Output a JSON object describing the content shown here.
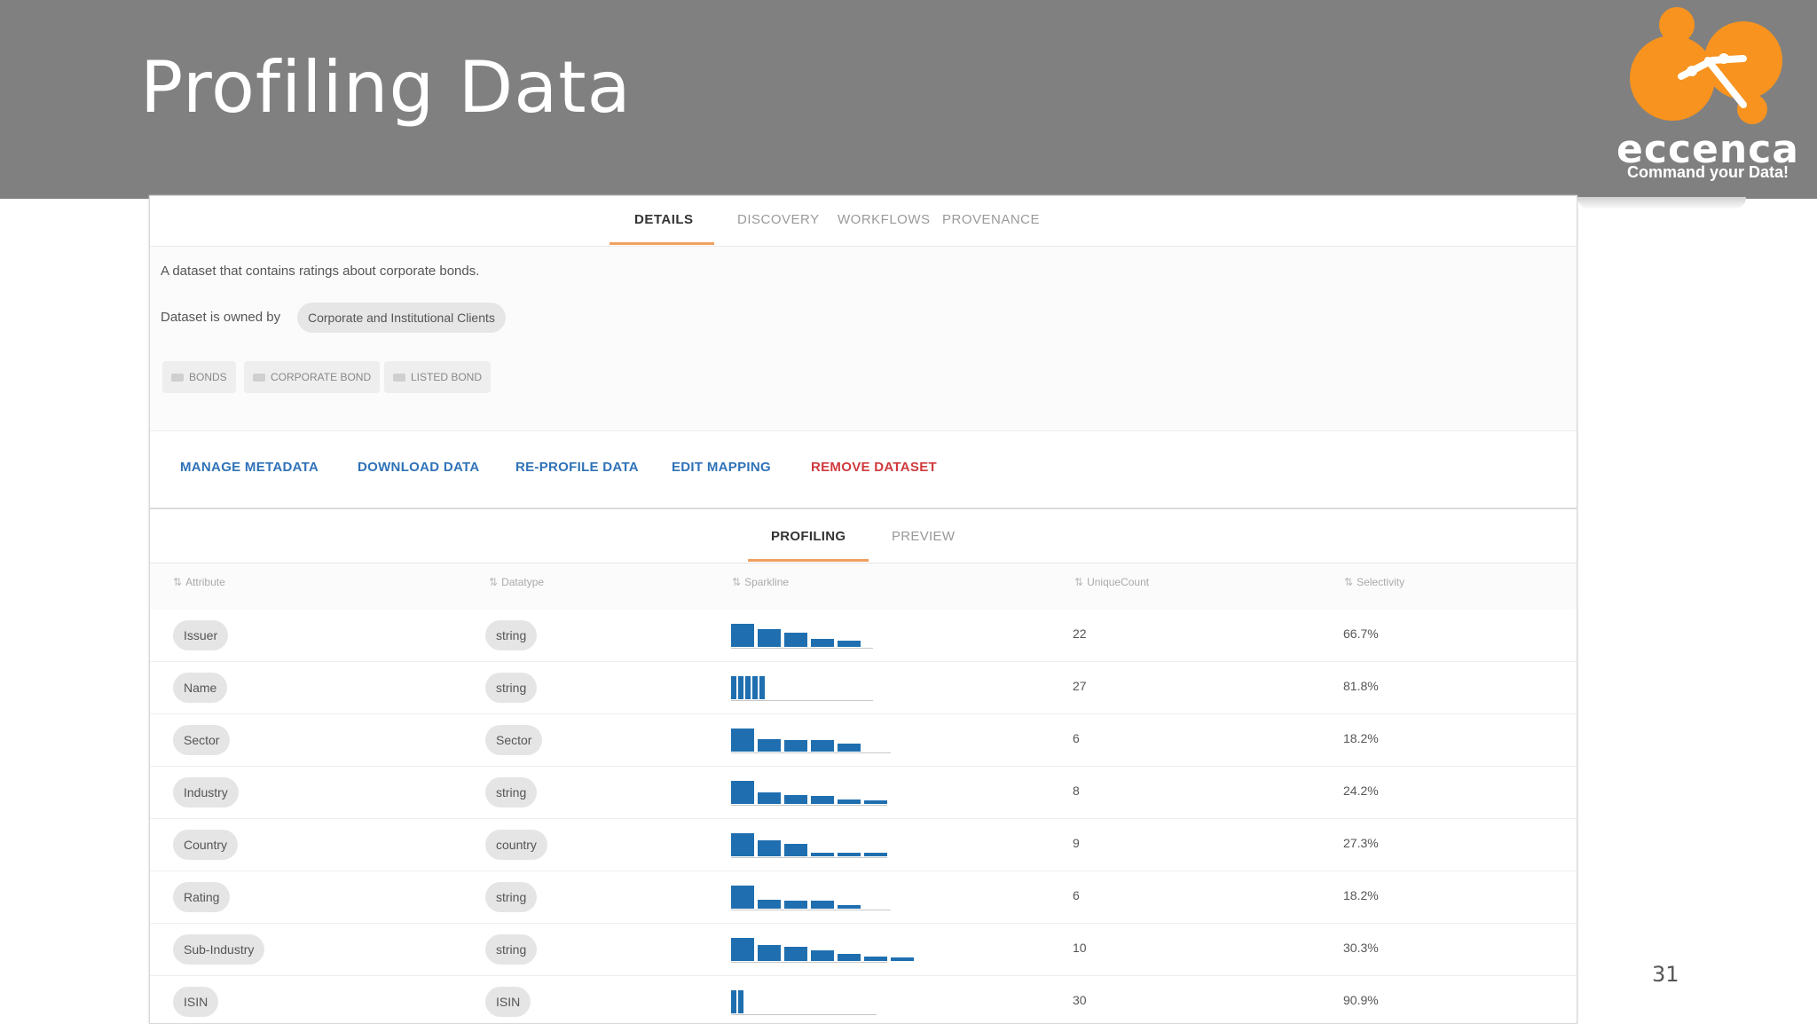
{
  "slide": {
    "title": "Profiling Data",
    "page_number": "31",
    "logo": {
      "word": "eccenca",
      "tagline": "Command your Data!"
    }
  },
  "tabs": [
    "DETAILS",
    "DISCOVERY",
    "WORKFLOWS",
    "PROVENANCE"
  ],
  "dataset": {
    "description": "A dataset that contains ratings about corporate bonds.",
    "owner_label": "Dataset is owned by",
    "owner": "Corporate and Institutional Clients",
    "tags": [
      "BONDS",
      "CORPORATE BOND",
      "LISTED BOND"
    ]
  },
  "actions": {
    "manage": "MANAGE METADATA",
    "download": "DOWNLOAD DATA",
    "reprofile": "RE-PROFILE DATA",
    "edit_mapping": "EDIT MAPPING",
    "remove": "REMOVE DATASET"
  },
  "subtabs": [
    "PROFILING",
    "PREVIEW"
  ],
  "table": {
    "headers": [
      "Attribute",
      "Datatype",
      "Sparkline",
      "UniqueCount",
      "Selectivity"
    ],
    "rows": [
      {
        "attribute": "Issuer",
        "datatype": "string",
        "unique": "22",
        "selectivity": "66.7%",
        "spark": [
          1.0,
          0.75,
          0.6,
          0.35,
          0.25
        ],
        "spark_width": 160
      },
      {
        "attribute": "Name",
        "datatype": "string",
        "unique": "27",
        "selectivity": "81.8%",
        "spark": [
          1.0,
          1.0,
          1.0,
          1.0,
          1.0
        ],
        "spark_width": 160
      },
      {
        "attribute": "Sector",
        "datatype": "Sector",
        "unique": "6",
        "selectivity": "18.2%",
        "spark": [
          1.0,
          0.55,
          0.5,
          0.5,
          0.35
        ],
        "spark_width": 180
      },
      {
        "attribute": "Industry",
        "datatype": "string",
        "unique": "8",
        "selectivity": "24.2%",
        "spark": [
          1.0,
          0.5,
          0.4,
          0.35,
          0.2,
          0.15
        ],
        "spark_width": 176
      },
      {
        "attribute": "Country",
        "datatype": "country",
        "unique": "9",
        "selectivity": "27.3%",
        "spark": [
          1.0,
          0.7,
          0.55,
          0.15,
          0.15,
          0.15
        ],
        "spark_width": 176
      },
      {
        "attribute": "Rating",
        "datatype": "string",
        "unique": "6",
        "selectivity": "18.2%",
        "spark": [
          1.0,
          0.4,
          0.35,
          0.35,
          0.15
        ],
        "spark_width": 180
      },
      {
        "attribute": "Sub-Industry",
        "datatype": "string",
        "unique": "10",
        "selectivity": "30.3%",
        "spark": [
          1.0,
          0.7,
          0.6,
          0.45,
          0.3,
          0.2,
          0.15
        ],
        "spark_width": 176
      },
      {
        "attribute": "ISIN",
        "datatype": "ISIN",
        "unique": "30",
        "selectivity": "90.9%",
        "spark": [
          1.0,
          1.0
        ],
        "spark_width": 164
      }
    ]
  },
  "colors": {
    "header_bg": "#808080",
    "logo_orange": "#f7931e",
    "link_blue": "#2f72b8",
    "danger_red": "#d0393e",
    "tab_underline": "#f0a060",
    "spark_blue": "#1f6fb0"
  }
}
